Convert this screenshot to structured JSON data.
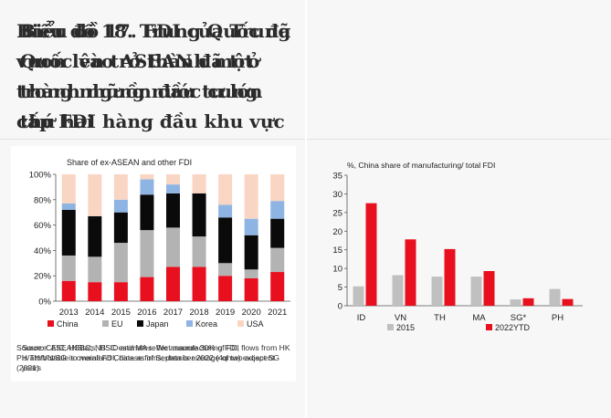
{
  "left": {
    "heading": "Biểu đồ 17. FDI của Trung Quốc vào ASEAN đã trở thành nguồn đầu tư lớn thứ hai",
    "source": "Source: ASEANStats, HSC estimates. We assume 30% of FDI flows from HK is attributable to mainland Chinese firms; data is average of two adjacent years"
  },
  "right": {
    "heading": "Biểu đồ 18. Trung Quốc đã vươn lên trở thành một trong những nước cung cấp FDI hàng đầu khu vực",
    "source": "Source: CEIC, HSBC; NB: ID and MA reflect manufacturing FDI, PH/TH/VN/SG is overall FDI, data as of September 2022 (4qma) except SG (2021)"
  },
  "chart_data": [
    {
      "type": "bar",
      "stacked": true,
      "title": "Share of ex-ASEAN and other FDI",
      "categories": [
        "2013",
        "2014",
        "2015",
        "2016",
        "2017",
        "2018",
        "2019",
        "2020",
        "2021"
      ],
      "series": [
        {
          "name": "China",
          "color": "#e8101e",
          "values": [
            16,
            15,
            15,
            19,
            27,
            27,
            20,
            18,
            23
          ]
        },
        {
          "name": "EU",
          "color": "#b3b3b3",
          "values": [
            20,
            20,
            31,
            37,
            31,
            24,
            10,
            7,
            19
          ]
        },
        {
          "name": "Japan",
          "color": "#0a0a0a",
          "values": [
            36,
            32,
            24,
            28,
            27,
            34,
            36,
            27,
            23
          ]
        },
        {
          "name": "Korea",
          "color": "#8eb4e3",
          "values": [
            5,
            0,
            10,
            12,
            7,
            0,
            10,
            13,
            14
          ]
        },
        {
          "name": "USA",
          "color": "#f9d5c3",
          "values": [
            23,
            33,
            20,
            4,
            8,
            15,
            24,
            35,
            21
          ]
        }
      ],
      "yticks": [
        "0%",
        "20%",
        "40%",
        "60%",
        "80%",
        "100%"
      ],
      "ylim": [
        0,
        100
      ],
      "legend_position": "bottom"
    },
    {
      "type": "bar",
      "title": "%, China share of manufacturing/  total  FDI",
      "categories": [
        "ID",
        "VN",
        "TH",
        "MA",
        "SG*",
        "PH"
      ],
      "series": [
        {
          "name": "2015",
          "color": "#c0c0c0",
          "values": [
            5.2,
            8.2,
            7.8,
            7.8,
            1.7,
            4.5
          ]
        },
        {
          "name": "2022YTD",
          "color": "#e8101e",
          "values": [
            27.5,
            17.8,
            15.2,
            9.3,
            2.0,
            1.8
          ]
        }
      ],
      "yticks": [
        "0",
        "5",
        "10",
        "15",
        "20",
        "25",
        "30",
        "35"
      ],
      "ylim": [
        0,
        35
      ],
      "legend_position": "bottom"
    }
  ]
}
